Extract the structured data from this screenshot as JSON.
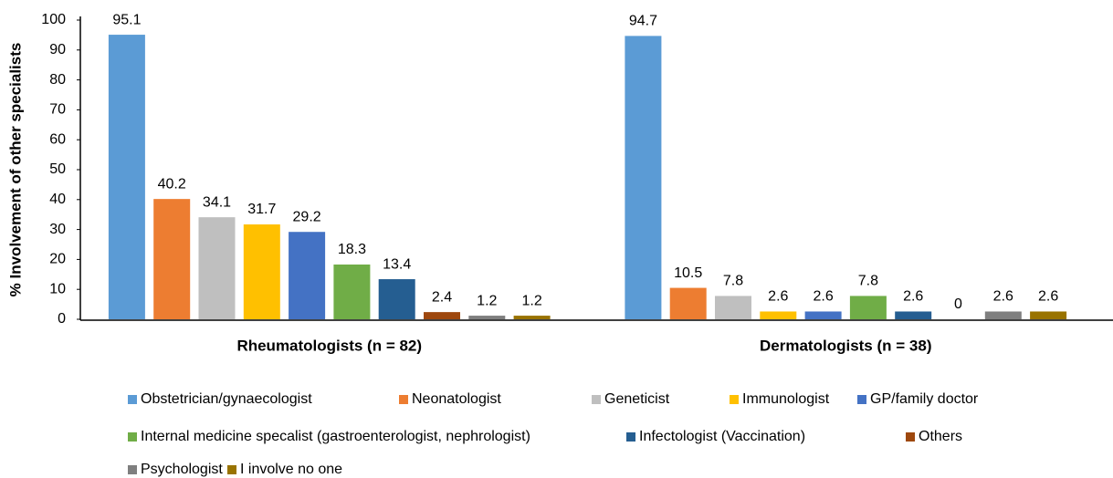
{
  "chart_data": {
    "type": "bar",
    "y_label": "% Involvement of other specialists",
    "categories": [
      "Rheumatologists (n = 82)",
      "Dermatologists (n = 38)"
    ],
    "series": [
      {
        "name": "Obstetrician/gynaecologist",
        "color": "#5b9bd5",
        "values": [
          95.1,
          94.7
        ]
      },
      {
        "name": "Neonatologist",
        "color": "#ed7d31",
        "values": [
          40.2,
          10.5
        ]
      },
      {
        "name": "Geneticist",
        "color": "#bfbfbf",
        "values": [
          34.1,
          7.8
        ]
      },
      {
        "name": "Immunologist",
        "color": "#ffc000",
        "values": [
          31.7,
          2.6
        ]
      },
      {
        "name": "GP/family doctor",
        "color": "#4472c4",
        "values": [
          29.2,
          2.6
        ]
      },
      {
        "name": "Internal medicine specalist (gastroenterologist, nephrologist)",
        "color": "#70ad47",
        "values": [
          18.3,
          7.8
        ]
      },
      {
        "name": "Infectologist (Vaccination)",
        "color": "#255e91",
        "values": [
          13.4,
          2.6
        ]
      },
      {
        "name": "Others",
        "color": "#9e480e",
        "values": [
          2.4,
          0
        ]
      },
      {
        "name": "Psychologist",
        "color": "#7f7f7f",
        "values": [
          1.2,
          2.6
        ]
      },
      {
        "name": "I involve no one",
        "color": "#997300",
        "values": [
          1.2,
          2.6
        ]
      }
    ],
    "ylim": [
      0,
      100
    ],
    "yticks": [
      0,
      10,
      20,
      30,
      40,
      50,
      60,
      70,
      80,
      90,
      100
    ],
    "grid": false
  }
}
